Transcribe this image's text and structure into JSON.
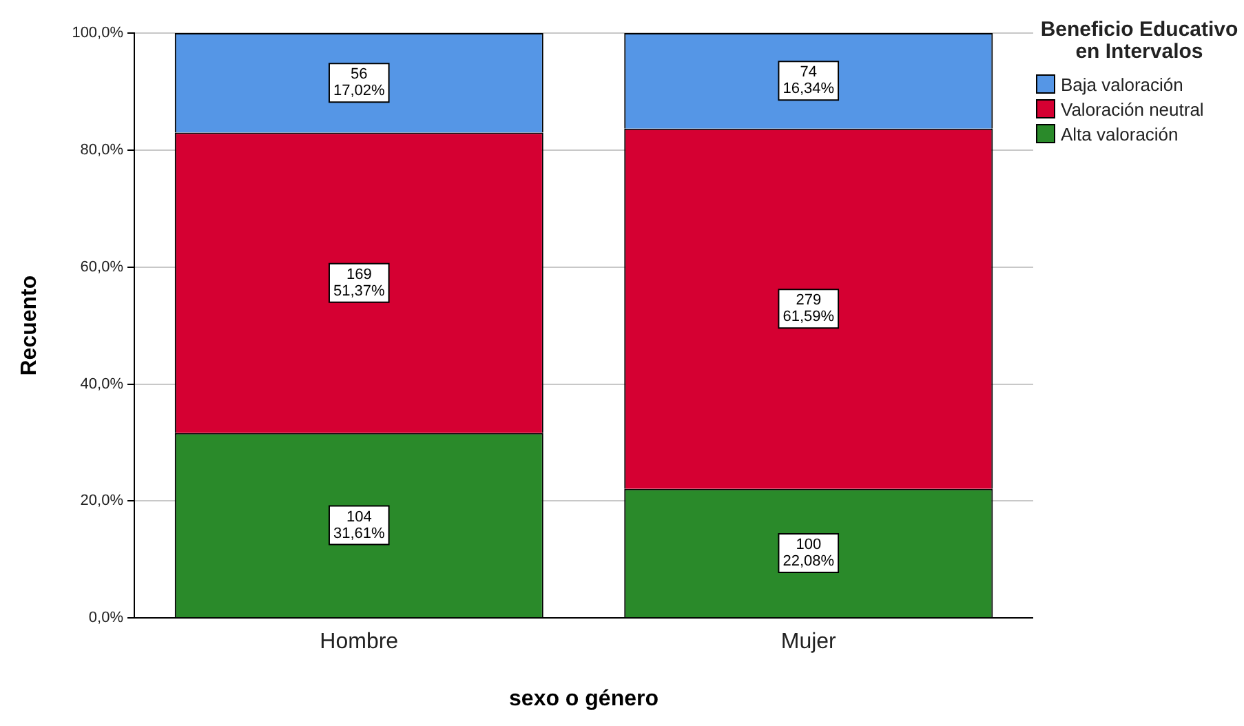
{
  "chart_data": {
    "type": "bar",
    "stacked": true,
    "xlabel": "sexo o género",
    "ylabel": "Recuento",
    "legend_title": "Beneficio Educativo en Intervalos",
    "legend": "top right",
    "grid": "y",
    "categories": [
      "Hombre",
      "Mujer"
    ],
    "ylim": [
      0,
      100
    ],
    "yticks": [
      {
        "value": 0,
        "label": "0,0%"
      },
      {
        "value": 20,
        "label": "20,0%"
      },
      {
        "value": 40,
        "label": "40,0%"
      },
      {
        "value": 60,
        "label": "60,0%"
      },
      {
        "value": 80,
        "label": "80,0%"
      },
      {
        "value": 100,
        "label": "100,0%"
      }
    ],
    "series": [
      {
        "name": "Alta valoración",
        "color": "#2a8a2a",
        "values": [
          31.61,
          22.08
        ],
        "value_labels": [
          "104\n31,61%",
          "100\n22,08%"
        ]
      },
      {
        "name": "Valoración neutral",
        "color": "#d50032",
        "values": [
          51.37,
          61.59
        ],
        "value_labels": [
          "169\n51,37%",
          "279\n61,59%"
        ]
      },
      {
        "name": "Baja valoración",
        "color": "#5596e6",
        "values": [
          17.02,
          16.34
        ],
        "value_labels": [
          "56\n17,02%",
          "74\n16,34%"
        ]
      }
    ]
  }
}
